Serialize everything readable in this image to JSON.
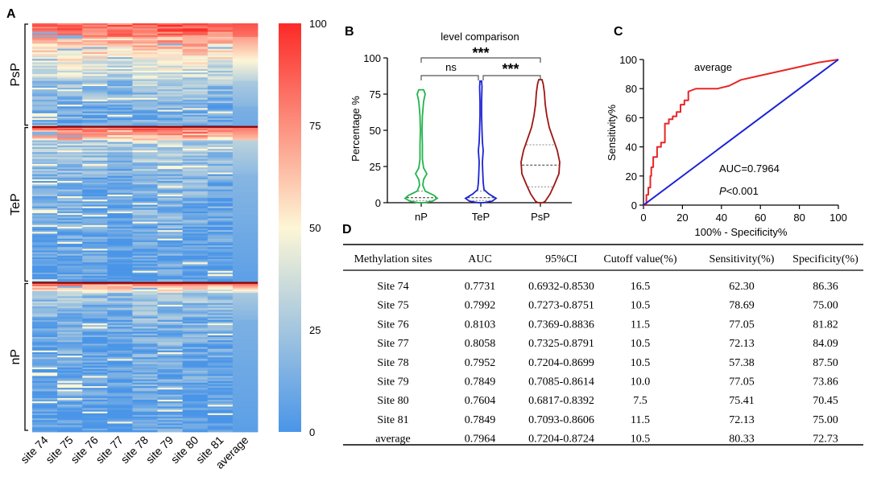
{
  "panel_labels": [
    "A",
    "B",
    "C",
    "D"
  ],
  "chart_data": [
    {
      "panel": "A",
      "type": "heatmap",
      "columns": [
        "site 74",
        "site 75",
        "site 76",
        "site 77",
        "site 78",
        "site 79",
        "site 80",
        "site 81",
        "average"
      ],
      "groups": [
        {
          "name": "PsP",
          "rows": 61
        },
        {
          "name": "TeP",
          "rows": 92
        },
        {
          "name": "nP",
          "rows": 88
        }
      ],
      "colorbar": {
        "min": 0,
        "max": 100,
        "ticks": [
          "0",
          "25",
          "50",
          "75",
          "100"
        ],
        "colors": [
          "#4a95e8",
          "#fdf6d6",
          "#fb2a27"
        ]
      },
      "note": "cell values (percent methylation) are not readable individually; rows sorted high to low within each group"
    },
    {
      "panel": "B",
      "type": "violin",
      "title": "level comparison",
      "ylabel": "Percentage %",
      "ylim": [
        0,
        100
      ],
      "yticks": [
        "0",
        "25",
        "50",
        "75",
        "100"
      ],
      "categories": [
        "nP",
        "TeP",
        "PsP"
      ],
      "colors": [
        "#22b44b",
        "#1b22d4",
        "#9e1414"
      ],
      "ranges": [
        [
          0,
          78
        ],
        [
          0,
          84
        ],
        [
          0,
          85
        ]
      ],
      "quartiles": [
        [
          1.5,
          3.5,
          8
        ],
        [
          1.5,
          3.5,
          8
        ],
        [
          11,
          26,
          40
        ]
      ],
      "significance": [
        {
          "from": "nP",
          "to": "TeP",
          "label": "ns"
        },
        {
          "from": "TeP",
          "to": "PsP",
          "label": "***"
        },
        {
          "from": "nP",
          "to": "PsP",
          "label": "***"
        }
      ]
    },
    {
      "panel": "C",
      "type": "line",
      "title": "average",
      "xlabel": "100% - Specificity%",
      "ylabel": "Sensitivity%",
      "xlim": [
        0,
        100
      ],
      "ylim": [
        0,
        100
      ],
      "ticks": [
        "0",
        "20",
        "40",
        "60",
        "80",
        "100"
      ],
      "annotations": [
        "AUC=0.7964",
        "P<0.001"
      ],
      "series": [
        {
          "name": "ROC",
          "color": "#e82626",
          "x": [
            0,
            1,
            1.5,
            1.5,
            2.5,
            2.5,
            3.5,
            3.5,
            4,
            4,
            5,
            5,
            7,
            7,
            9,
            9,
            11,
            11,
            13,
            13,
            15,
            15,
            17,
            17,
            19,
            19,
            21,
            21,
            23,
            23,
            25,
            27,
            29,
            31,
            38,
            44,
            50,
            60,
            70,
            80,
            90,
            100
          ],
          "y": [
            0,
            0,
            0,
            7,
            7,
            12,
            12,
            20,
            20,
            26,
            26,
            33,
            33,
            40,
            40,
            43,
            43,
            56,
            56,
            59,
            59,
            61,
            61,
            64,
            64,
            69,
            69,
            72,
            72,
            78,
            79,
            80,
            80,
            80,
            80,
            82,
            86,
            89,
            92,
            95,
            98,
            100
          ]
        },
        {
          "name": "reference",
          "color": "#1b22d4",
          "x": [
            0,
            100
          ],
          "y": [
            0,
            100
          ]
        }
      ]
    },
    {
      "panel": "D",
      "type": "table",
      "headers": [
        "Methylation sites",
        "AUC",
        "95%CI",
        "Cutoff value(%)",
        "Sensitivity(%)",
        "Specificity(%)"
      ],
      "rows": [
        [
          "Site 74",
          "0.7731",
          "0.6932-0.8530",
          "16.5",
          "62.30",
          "86.36"
        ],
        [
          "Site 75",
          "0.7992",
          "0.7273-0.8751",
          "10.5",
          "78.69",
          "75.00"
        ],
        [
          "Site 76",
          "0.8103",
          "0.7369-0.8836",
          "11.5",
          "77.05",
          "81.82"
        ],
        [
          "Site 77",
          "0.8058",
          "0.7325-0.8791",
          "10.5",
          "72.13",
          "84.09"
        ],
        [
          "Site 78",
          "0.7952",
          "0.7204-0.8699",
          "10.5",
          "57.38",
          "87.50"
        ],
        [
          "Site 79",
          "0.7849",
          "0.7085-0.8614",
          "10.0",
          "77.05",
          "73.86"
        ],
        [
          "Site 80",
          "0.7604",
          "0.6817-0.8392",
          "7.5",
          "75.41",
          "70.45"
        ],
        [
          "Site 81",
          "0.7849",
          "0.7093-0.8606",
          "11.5",
          "72.13",
          "75.00"
        ],
        [
          "average",
          "0.7964",
          "0.7204-0.8724",
          "10.5",
          "80.33",
          "72.73"
        ]
      ]
    }
  ]
}
